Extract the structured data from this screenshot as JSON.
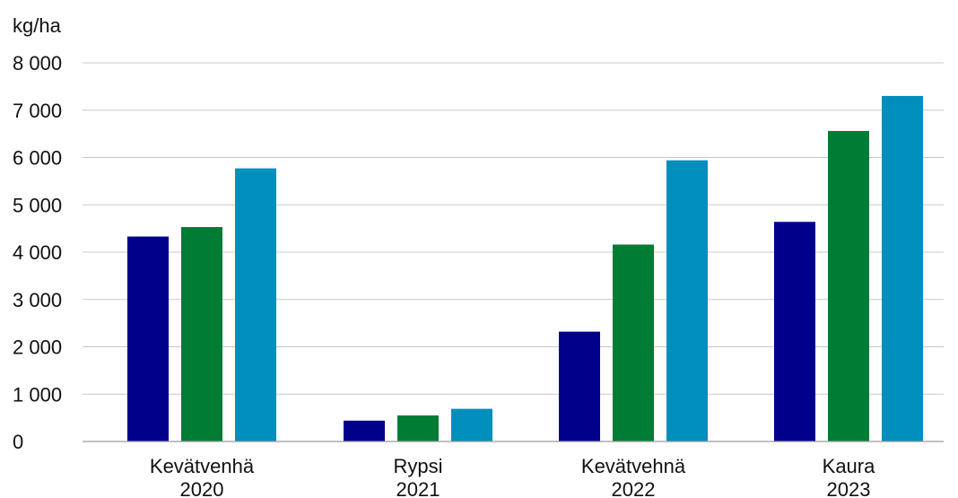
{
  "chart_data": {
    "type": "bar",
    "ylabel": "kg/ha",
    "ylim": [
      0,
      8000
    ],
    "yticks": [
      0,
      1000,
      2000,
      3000,
      4000,
      5000,
      6000,
      7000,
      8000
    ],
    "ytick_labels": [
      "0",
      "1 000",
      "2 000",
      "3 000",
      "4 000",
      "5 000",
      "6 000",
      "7 000",
      "8 000"
    ],
    "categories": [
      [
        "Kevätvenhä",
        "2020"
      ],
      [
        "Rypsi",
        "2021"
      ],
      [
        "Kevätvehnä",
        "2022"
      ],
      [
        "Kaura",
        "2023"
      ]
    ],
    "series": [
      {
        "color": "#00008b",
        "values": [
          4330,
          440,
          2320,
          4640
        ]
      },
      {
        "color": "#007c35",
        "values": [
          4530,
          550,
          4160,
          6560
        ]
      },
      {
        "color": "#008fbd",
        "values": [
          5770,
          690,
          5940,
          7300
        ]
      }
    ],
    "grid": true,
    "legend": "none"
  }
}
